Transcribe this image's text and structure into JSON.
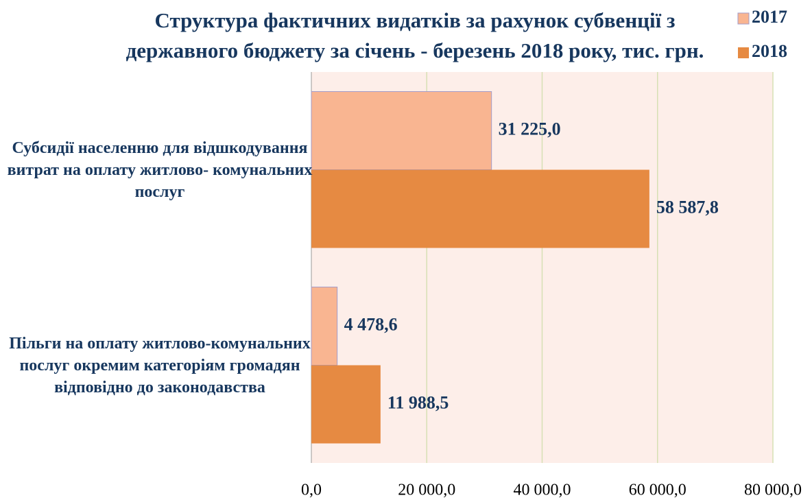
{
  "chart_data": {
    "type": "barh",
    "title": "Структура фактичних видатків за рахунок субвенції з державного бюджету за січень - березень 2018 року, тис. грн.",
    "categories": [
      "Субсидії населенню для відшкодування витрат на оплату житлово- комунальних послуг",
      "Пільги на оплату житлово-комунальних послуг окремим категоріям громадян відповідно до законодавства"
    ],
    "series": [
      {
        "name": "2017",
        "color": "#f9b591",
        "values": [
          31225.0,
          4478.6
        ],
        "value_labels": [
          "31 225,0",
          "4 478,6"
        ]
      },
      {
        "name": "2018",
        "color": "#e68a42",
        "values": [
          58587.8,
          11988.5
        ],
        "value_labels": [
          "58 587,8",
          "11 988,5"
        ]
      }
    ],
    "xlim": [
      0,
      80000
    ],
    "xticks": [
      {
        "value": 0,
        "label": "0,0"
      },
      {
        "value": 20000,
        "label": "20 000,0"
      },
      {
        "value": 40000,
        "label": "40 000,0"
      },
      {
        "value": 60000,
        "label": "60 000,0"
      },
      {
        "value": 80000,
        "label": "80 000,0"
      }
    ],
    "grid": true,
    "legend": "top-right"
  }
}
